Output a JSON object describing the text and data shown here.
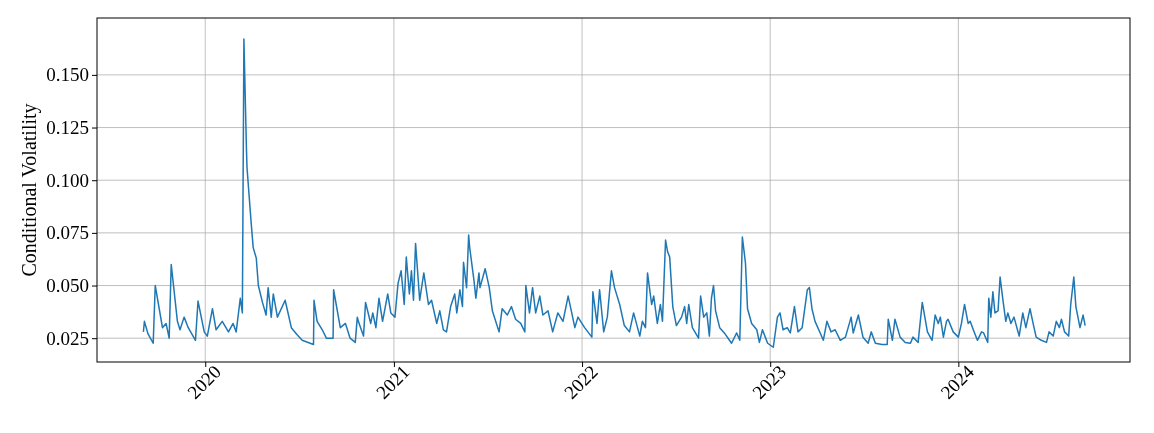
{
  "chart_data": {
    "type": "line",
    "ylabel": "Conditional Volatility",
    "xlim": [
      "2019-06-05",
      "2024-11-29"
    ],
    "ylim": [
      0.0137,
      0.177
    ],
    "xticks": [
      {
        "value": "2020-01-01",
        "label": "2020"
      },
      {
        "value": "2021-01-01",
        "label": "2021"
      },
      {
        "value": "2022-01-01",
        "label": "2022"
      },
      {
        "value": "2023-01-01",
        "label": "2023"
      },
      {
        "value": "2024-01-01",
        "label": "2024"
      }
    ],
    "yticks": [
      {
        "value": 0.025,
        "label": "0.025"
      },
      {
        "value": 0.05,
        "label": "0.050"
      },
      {
        "value": 0.075,
        "label": "0.075"
      },
      {
        "value": 0.1,
        "label": "0.100"
      },
      {
        "value": 0.125,
        "label": "0.125"
      },
      {
        "value": 0.15,
        "label": "0.150"
      }
    ],
    "grid": true,
    "line_style": "solid",
    "marker": "none",
    "x": [
      "2019-09-03",
      "2019-09-05",
      "2019-09-12",
      "2019-09-22",
      "2019-09-26",
      "2019-10-10",
      "2019-10-17",
      "2019-10-23",
      "2019-10-27",
      "2019-11-08",
      "2019-11-13",
      "2019-11-21",
      "2019-11-29",
      "2019-12-13",
      "2019-12-18",
      "2019-12-30",
      "2020-01-05",
      "2020-01-15",
      "2020-01-22",
      "2020-02-03",
      "2020-02-15",
      "2020-02-24",
      "2020-03-01",
      "2020-03-09",
      "2020-03-13",
      "2020-03-16",
      "2020-03-21",
      "2020-03-22",
      "2020-03-26",
      "2020-03-30",
      "2020-04-03",
      "2020-04-09",
      "2020-04-13",
      "2020-04-21",
      "2020-04-28",
      "2020-05-02",
      "2020-05-08",
      "2020-05-12",
      "2020-05-20",
      "2020-06-04",
      "2020-06-16",
      "2020-06-26",
      "2020-07-07",
      "2020-07-29",
      "2020-07-30",
      "2020-08-05",
      "2020-08-15",
      "2020-08-23",
      "2020-09-05",
      "2020-09-06",
      "2020-09-19",
      "2020-09-29",
      "2020-10-08",
      "2020-10-18",
      "2020-10-22",
      "2020-10-24",
      "2020-11-03",
      "2020-11-07",
      "2020-11-17",
      "2020-11-21",
      "2020-11-27",
      "2020-12-03",
      "2020-12-10",
      "2020-12-20",
      "2020-12-26",
      "2021-01-03",
      "2021-01-09",
      "2021-01-15",
      "2021-01-21",
      "2021-01-25",
      "2021-01-31",
      "2021-02-04",
      "2021-02-08",
      "2021-02-12",
      "2021-02-20",
      "2021-02-28",
      "2021-03-09",
      "2021-03-15",
      "2021-03-25",
      "2021-03-31",
      "2021-04-07",
      "2021-04-13",
      "2021-04-21",
      "2021-04-29",
      "2021-05-03",
      "2021-05-09",
      "2021-05-14",
      "2021-05-16",
      "2021-05-22",
      "2021-05-26",
      "2021-05-28",
      "2021-06-05",
      "2021-06-09",
      "2021-06-15",
      "2021-06-17",
      "2021-06-27",
      "2021-07-05",
      "2021-07-11",
      "2021-07-24",
      "2021-07-30",
      "2021-08-09",
      "2021-08-17",
      "2021-08-25",
      "2021-09-04",
      "2021-09-12",
      "2021-09-14",
      "2021-09-21",
      "2021-09-27",
      "2021-10-03",
      "2021-10-11",
      "2021-10-17",
      "2021-10-27",
      "2021-11-05",
      "2021-11-15",
      "2021-11-25",
      "2021-12-05",
      "2021-12-12",
      "2021-12-18",
      "2021-12-24",
      "2022-01-06",
      "2022-01-20",
      "2022-01-22",
      "2022-01-30",
      "2022-02-04",
      "2022-02-12",
      "2022-02-19",
      "2022-02-27",
      "2022-03-05",
      "2022-03-15",
      "2022-03-24",
      "2022-04-03",
      "2022-04-11",
      "2022-04-23",
      "2022-04-28",
      "2022-05-04",
      "2022-05-08",
      "2022-05-16",
      "2022-05-20",
      "2022-05-27",
      "2022-06-02",
      "2022-06-06",
      "2022-06-12",
      "2022-06-16",
      "2022-06-20",
      "2022-06-26",
      "2022-07-03",
      "2022-07-13",
      "2022-07-19",
      "2022-07-23",
      "2022-07-27",
      "2022-08-03",
      "2022-08-15",
      "2022-08-19",
      "2022-08-25",
      "2022-08-31",
      "2022-09-05",
      "2022-09-09",
      "2022-09-13",
      "2022-09-17",
      "2022-09-25",
      "2022-10-04",
      "2022-10-18",
      "2022-10-28",
      "2022-11-03",
      "2022-11-08",
      "2022-11-14",
      "2022-11-18",
      "2022-11-26",
      "2022-12-06",
      "2022-12-11",
      "2022-12-17",
      "2022-12-27",
      "2023-01-07",
      "2023-01-15",
      "2023-01-20",
      "2023-01-26",
      "2023-02-03",
      "2023-02-09",
      "2023-02-17",
      "2023-02-24",
      "2023-03-04",
      "2023-03-14",
      "2023-03-18",
      "2023-03-23",
      "2023-03-29",
      "2023-04-08",
      "2023-04-14",
      "2023-04-21",
      "2023-04-29",
      "2023-05-07",
      "2023-05-17",
      "2023-05-27",
      "2023-06-07",
      "2023-06-11",
      "2023-06-21",
      "2023-06-30",
      "2023-07-10",
      "2023-07-16",
      "2023-07-24",
      "2023-08-06",
      "2023-08-16",
      "2023-08-18",
      "2023-08-26",
      "2023-08-31",
      "2023-09-10",
      "2023-09-20",
      "2023-09-30",
      "2023-10-05",
      "2023-10-15",
      "2023-10-17",
      "2023-10-23",
      "2023-11-02",
      "2023-11-11",
      "2023-11-17",
      "2023-11-23",
      "2023-11-27",
      "2023-12-03",
      "2023-12-09",
      "2023-12-12",
      "2023-12-22",
      "2024-01-01",
      "2024-01-07",
      "2024-01-13",
      "2024-01-20",
      "2024-01-24",
      "2024-01-30",
      "2024-02-07",
      "2024-02-15",
      "2024-02-19",
      "2024-02-27",
      "2024-02-29",
      "2024-03-04",
      "2024-03-08",
      "2024-03-12",
      "2024-03-18",
      "2024-03-22",
      "2024-03-27",
      "2024-04-02",
      "2024-04-06",
      "2024-04-12",
      "2024-04-18",
      "2024-04-28",
      "2024-05-05",
      "2024-05-11",
      "2024-05-19",
      "2024-05-25",
      "2024-05-31",
      "2024-06-10",
      "2024-06-20",
      "2024-06-25",
      "2024-07-03",
      "2024-07-09",
      "2024-07-15",
      "2024-07-19",
      "2024-07-25",
      "2024-08-02",
      "2024-08-06",
      "2024-08-12",
      "2024-08-16",
      "2024-08-24",
      "2024-08-30",
      "2024-09-03"
    ],
    "series": [
      {
        "color": "#1f77b4",
        "values": [
          0.028,
          0.033,
          0.027,
          0.0226,
          0.05,
          0.03,
          0.032,
          0.025,
          0.06,
          0.033,
          0.029,
          0.035,
          0.03,
          0.024,
          0.0426,
          0.028,
          0.026,
          0.039,
          0.029,
          0.033,
          0.028,
          0.032,
          0.028,
          0.044,
          0.037,
          0.167,
          0.114,
          0.106,
          0.093,
          0.08,
          0.068,
          0.063,
          0.05,
          0.042,
          0.036,
          0.049,
          0.035,
          0.046,
          0.035,
          0.043,
          0.03,
          0.027,
          0.024,
          0.022,
          0.043,
          0.033,
          0.029,
          0.025,
          0.025,
          0.048,
          0.03,
          0.032,
          0.025,
          0.023,
          0.035,
          0.033,
          0.026,
          0.042,
          0.032,
          0.037,
          0.03,
          0.044,
          0.033,
          0.046,
          0.037,
          0.035,
          0.051,
          0.057,
          0.041,
          0.0635,
          0.046,
          0.057,
          0.043,
          0.07,
          0.043,
          0.056,
          0.041,
          0.043,
          0.032,
          0.038,
          0.029,
          0.028,
          0.04,
          0.046,
          0.037,
          0.048,
          0.04,
          0.061,
          0.049,
          0.074,
          0.068,
          0.053,
          0.044,
          0.056,
          0.049,
          0.058,
          0.049,
          0.038,
          0.028,
          0.039,
          0.036,
          0.04,
          0.034,
          0.032,
          0.028,
          0.05,
          0.037,
          0.049,
          0.037,
          0.045,
          0.036,
          0.038,
          0.028,
          0.037,
          0.033,
          0.045,
          0.037,
          0.03,
          0.035,
          0.03,
          0.0255,
          0.047,
          0.032,
          0.048,
          0.028,
          0.035,
          0.057,
          0.049,
          0.041,
          0.031,
          0.028,
          0.037,
          0.026,
          0.033,
          0.03,
          0.056,
          0.041,
          0.045,
          0.032,
          0.041,
          0.033,
          0.0716,
          0.066,
          0.0635,
          0.04,
          0.031,
          0.035,
          0.04,
          0.032,
          0.041,
          0.03,
          0.025,
          0.045,
          0.035,
          0.037,
          0.026,
          0.044,
          0.05,
          0.038,
          0.03,
          0.0275,
          0.0226,
          0.0275,
          0.024,
          0.073,
          0.0607,
          0.039,
          0.032,
          0.029,
          0.023,
          0.029,
          0.0226,
          0.0207,
          0.035,
          0.037,
          0.029,
          0.03,
          0.0275,
          0.04,
          0.028,
          0.03,
          0.048,
          0.049,
          0.039,
          0.033,
          0.0275,
          0.024,
          0.033,
          0.028,
          0.029,
          0.024,
          0.0255,
          0.035,
          0.0275,
          0.036,
          0.0255,
          0.0226,
          0.028,
          0.0226,
          0.022,
          0.022,
          0.034,
          0.024,
          0.034,
          0.0255,
          0.023,
          0.0226,
          0.0255,
          0.023,
          0.028,
          0.042,
          0.028,
          0.024,
          0.036,
          0.032,
          0.035,
          0.0255,
          0.033,
          0.034,
          0.028,
          0.0255,
          0.032,
          0.041,
          0.032,
          0.033,
          0.029,
          0.024,
          0.028,
          0.0275,
          0.023,
          0.044,
          0.035,
          0.047,
          0.037,
          0.038,
          0.054,
          0.044,
          0.033,
          0.037,
          0.032,
          0.035,
          0.026,
          0.037,
          0.03,
          0.039,
          0.032,
          0.0255,
          0.024,
          0.023,
          0.028,
          0.026,
          0.033,
          0.03,
          0.034,
          0.028,
          0.026,
          0.041,
          0.054,
          0.04,
          0.03,
          0.036,
          0.031
        ]
      }
    ]
  }
}
